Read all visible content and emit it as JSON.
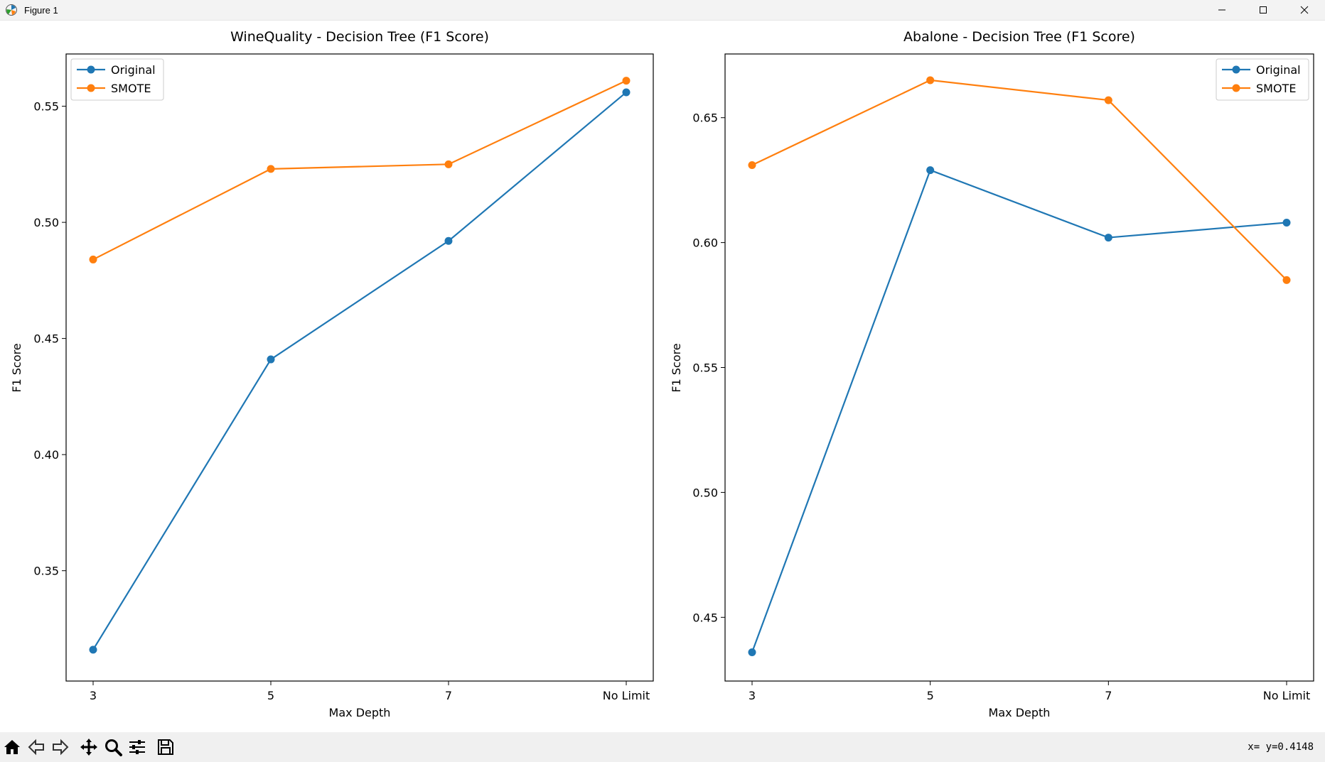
{
  "window": {
    "title": "Figure 1",
    "icon": "matplotlib-icon",
    "controls": [
      "minimize-icon",
      "maximize-icon",
      "close-icon"
    ]
  },
  "toolbar": {
    "buttons": [
      "home-icon",
      "back-arrow-icon",
      "forward-arrow-icon",
      "pan-icon",
      "zoom-icon",
      "configure-subplots-icon",
      "save-icon"
    ],
    "coord_readout": "x= y=0.4148"
  },
  "colors": {
    "original": "#1f77b4",
    "smote": "#ff7f0e"
  },
  "chart_data": [
    {
      "type": "line",
      "title": "WineQuality - Decision Tree (F1 Score)",
      "xlabel": "Max Depth",
      "ylabel": "F1 Score",
      "categories": [
        "3",
        "5",
        "7",
        "No Limit"
      ],
      "ylim": [
        0.3025,
        0.5725
      ],
      "yticks": [
        0.35,
        0.4,
        0.45,
        0.5,
        0.55
      ],
      "ytick_labels": [
        "0.35",
        "0.40",
        "0.45",
        "0.50",
        "0.55"
      ],
      "legend_position": "upper left",
      "grid": false,
      "series": [
        {
          "name": "Original",
          "color": "#1f77b4",
          "values": [
            0.316,
            0.441,
            0.492,
            0.556
          ]
        },
        {
          "name": "SMOTE",
          "color": "#ff7f0e",
          "values": [
            0.484,
            0.523,
            0.525,
            0.561
          ]
        }
      ]
    },
    {
      "type": "line",
      "title": "Abalone - Decision Tree (F1 Score)",
      "xlabel": "Max Depth",
      "ylabel": "F1 Score",
      "categories": [
        "3",
        "5",
        "7",
        "No Limit"
      ],
      "ylim": [
        0.4245,
        0.6755
      ],
      "yticks": [
        0.45,
        0.5,
        0.55,
        0.6,
        0.65
      ],
      "ytick_labels": [
        "0.45",
        "0.50",
        "0.55",
        "0.60",
        "0.65"
      ],
      "legend_position": "upper right",
      "grid": false,
      "series": [
        {
          "name": "Original",
          "color": "#1f77b4",
          "values": [
            0.436,
            0.629,
            0.602,
            0.608
          ]
        },
        {
          "name": "SMOTE",
          "color": "#ff7f0e",
          "values": [
            0.631,
            0.665,
            0.657,
            0.585
          ]
        }
      ]
    }
  ]
}
